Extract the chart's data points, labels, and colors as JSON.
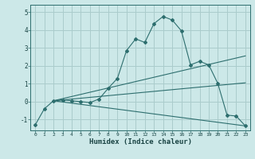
{
  "title": "",
  "xlabel": "Humidex (Indice chaleur)",
  "background_color": "#cce8e8",
  "grid_color": "#aacccc",
  "line_color": "#2d6e6e",
  "xlim": [
    -0.5,
    23.5
  ],
  "ylim": [
    -1.6,
    5.4
  ],
  "yticks": [
    -1,
    0,
    1,
    2,
    3,
    4,
    5
  ],
  "xticks": [
    0,
    1,
    2,
    3,
    4,
    5,
    6,
    7,
    8,
    9,
    10,
    11,
    12,
    13,
    14,
    15,
    16,
    17,
    18,
    19,
    20,
    21,
    22,
    23
  ],
  "lines": [
    {
      "x": [
        0,
        1,
        2,
        3,
        4,
        5,
        6,
        7,
        8,
        9,
        10,
        11,
        12,
        13,
        14,
        15,
        16,
        17,
        18,
        19,
        20,
        21,
        22,
        23
      ],
      "y": [
        -1.3,
        -0.4,
        0.05,
        0.1,
        0.05,
        0.0,
        -0.05,
        0.15,
        0.75,
        1.3,
        2.85,
        3.5,
        3.3,
        4.35,
        4.75,
        4.55,
        3.95,
        2.05,
        2.25,
        2.05,
        1.0,
        -0.75,
        -0.8,
        -1.35
      ],
      "marker": true,
      "solid": true
    },
    {
      "x": [
        2,
        23
      ],
      "y": [
        0.05,
        2.55
      ],
      "marker": false,
      "solid": true
    },
    {
      "x": [
        2,
        23
      ],
      "y": [
        0.05,
        1.05
      ],
      "marker": false,
      "solid": true
    },
    {
      "x": [
        2,
        23
      ],
      "y": [
        0.05,
        -1.35
      ],
      "marker": false,
      "solid": true
    }
  ]
}
